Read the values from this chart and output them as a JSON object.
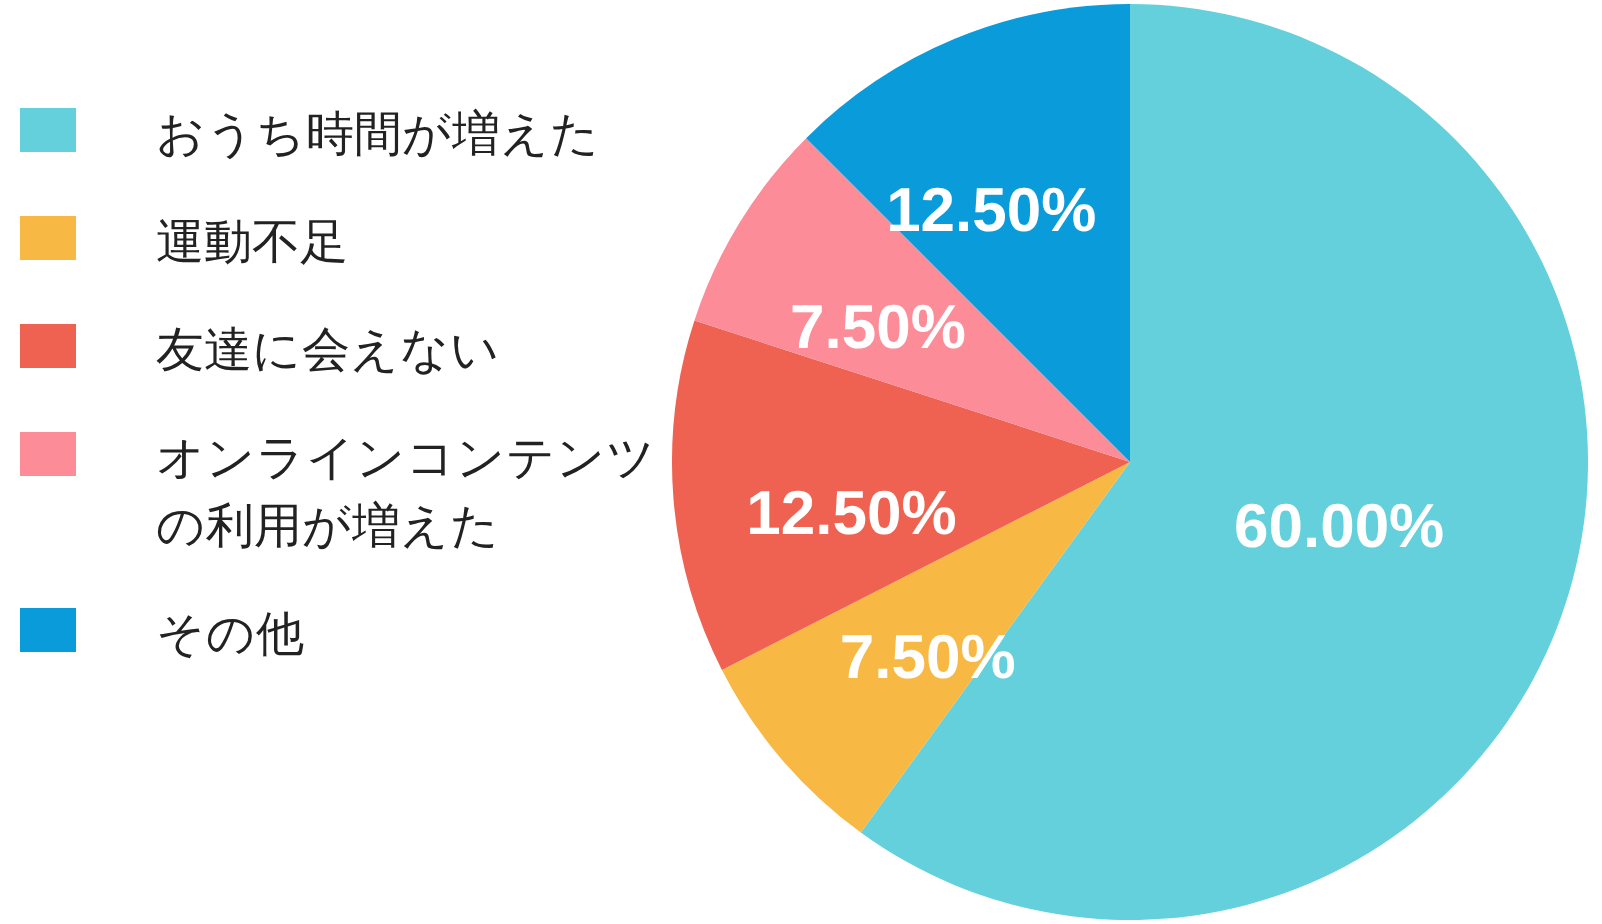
{
  "chart_data": {
    "type": "pie",
    "categories": [
      "おうち時間が増えた",
      "運動不足",
      "友達に会えない",
      "オンラインコンテンツの利用が増えた",
      "その他"
    ],
    "values": [
      60,
      7.5,
      12.5,
      7.5,
      12.5
    ],
    "colors": [
      "#63d0dc",
      "#f7b944",
      "#ef6150",
      "#fd8c99",
      "#0a9bdb"
    ],
    "value_labels": [
      "60.00%",
      "7.50%",
      "12.50%",
      "7.50%",
      "12.50%"
    ],
    "legend": "left"
  }
}
